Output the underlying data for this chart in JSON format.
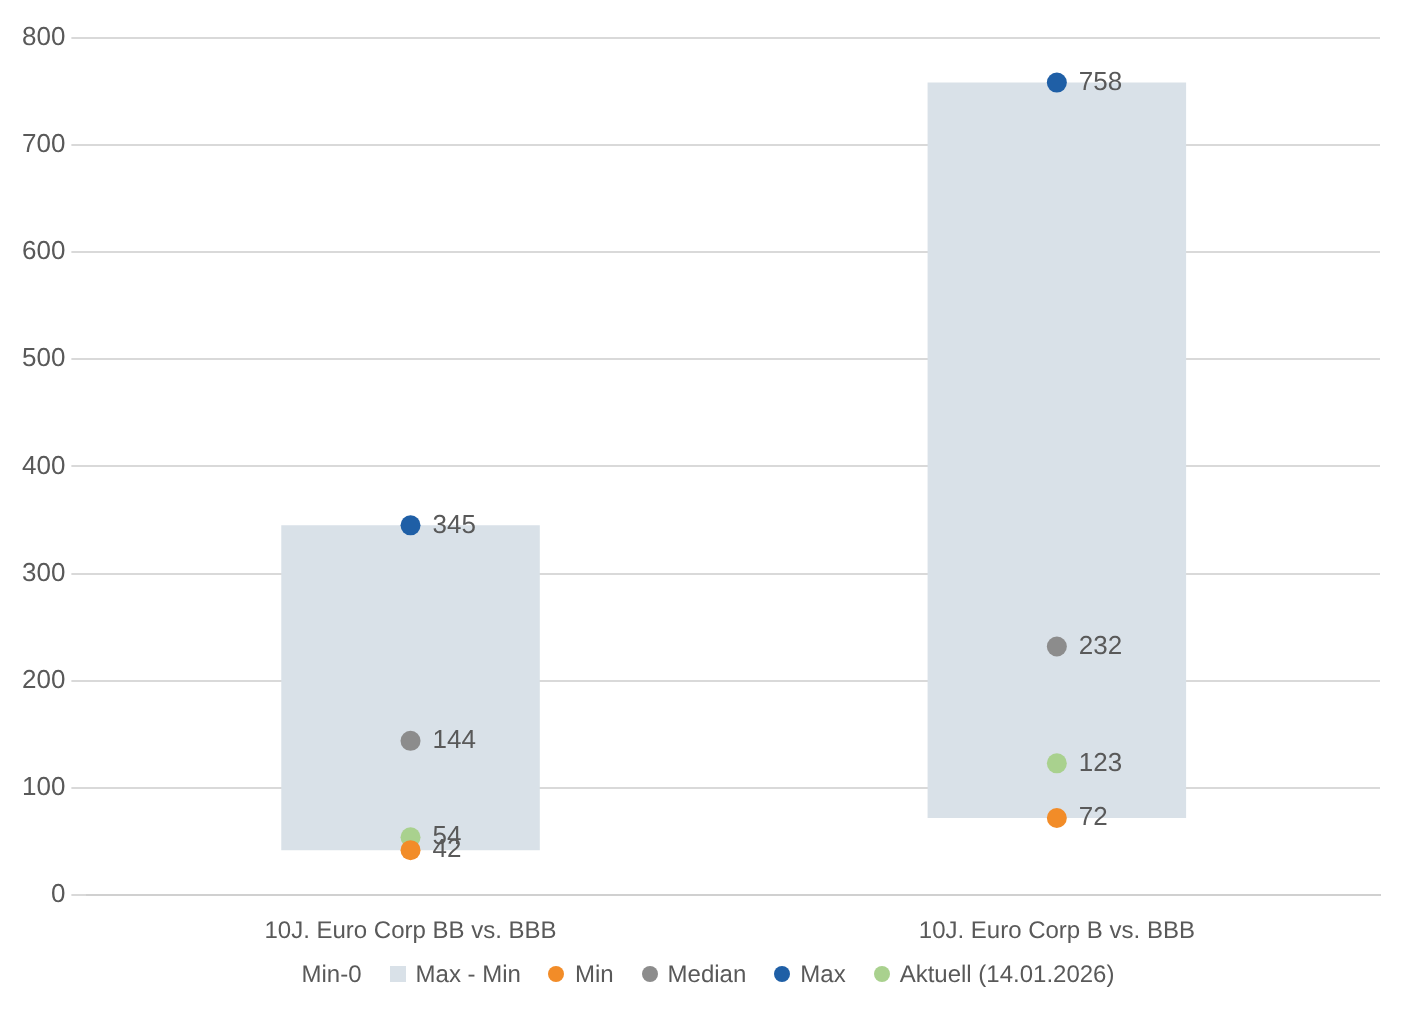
{
  "chart_data": {
    "type": "bar",
    "categories": [
      "10J. Euro Corp BB vs. BBB",
      "10J. Euro Corp B vs. BBB"
    ],
    "series": [
      {
        "name": "Max - Min",
        "color": "#d9e1e8",
        "base": [
          42,
          72
        ],
        "values": [
          303,
          686
        ]
      },
      {
        "name": "Min",
        "type": "scatter",
        "color": "#f28c28",
        "x": [
          "10J. Euro Corp BB vs. BBB",
          "10J. Euro Corp B vs. BBB"
        ],
        "values": [
          42,
          72
        ],
        "value_labels": [
          "42",
          "72"
        ]
      },
      {
        "name": "Median",
        "type": "scatter",
        "color": "#8c8c8c",
        "x": [
          "10J. Euro Corp BB vs. BBB",
          "10J. Euro Corp B vs. BBB"
        ],
        "values": [
          144,
          232
        ],
        "value_labels": [
          "144",
          "232"
        ]
      },
      {
        "name": "Max",
        "type": "scatter",
        "color": "#1f5fa6",
        "x": [
          "10J. Euro Corp BB vs. BBB",
          "10J. Euro Corp B vs. BBB"
        ],
        "values": [
          345,
          758
        ],
        "value_labels": [
          "345",
          "758"
        ]
      },
      {
        "name": "Aktuell (14.01.2026)",
        "type": "scatter",
        "color": "#a9d18e",
        "x": [
          "10J. Euro Corp BB vs. BBB",
          "10J. Euro Corp B vs. BBB"
        ],
        "values": [
          54,
          123
        ],
        "value_labels": [
          "54",
          "123"
        ]
      }
    ],
    "annotations": [
      "Min-0"
    ],
    "ylim": [
      0,
      800
    ],
    "yticks": [
      0,
      100,
      200,
      300,
      400,
      500,
      600,
      700,
      800
    ],
    "grid": "y",
    "legend": "bottom",
    "marker": "circle"
  }
}
